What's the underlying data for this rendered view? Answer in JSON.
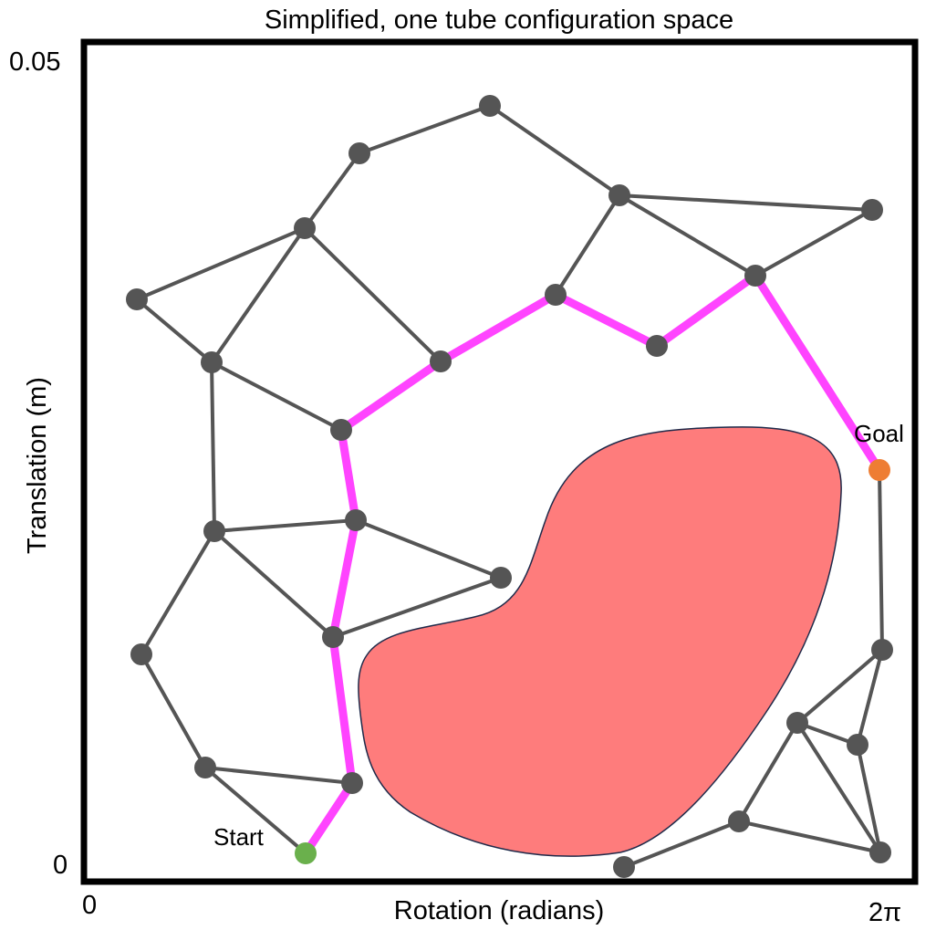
{
  "title": "Simplified, one tube configuration space",
  "x_axis": {
    "label": "Rotation (radians)",
    "min_label": "0",
    "max_label": "2π"
  },
  "y_axis": {
    "label": "Translation (m)",
    "min_label": "0",
    "max_label": "0.05"
  },
  "labels": {
    "start": "Start",
    "goal": "Goal"
  },
  "colors": {
    "edge": "#555555",
    "node": "#555555",
    "path": "#ff44ff",
    "start": "#6ab04c",
    "goal": "#ee7d33",
    "obstacle": "#fe7c7c",
    "obstacle_outline": "#1f2a4a",
    "frame": "#000000"
  }
}
